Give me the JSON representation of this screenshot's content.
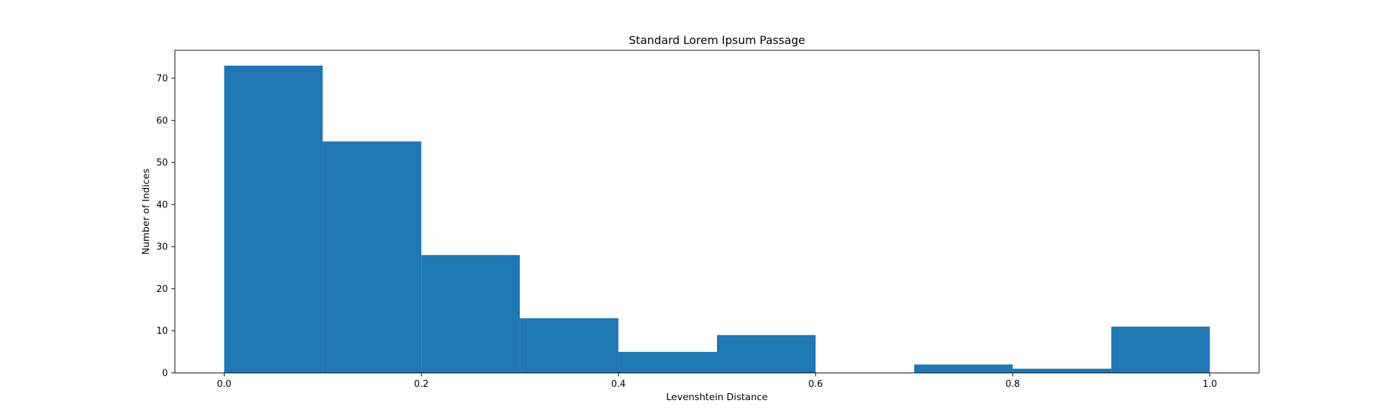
{
  "chart_data": {
    "type": "bar",
    "title": "Standard Lorem Ipsum Passage",
    "xlabel": "Levenshtein Distance",
    "ylabel": "Number of Indices",
    "bins": [
      {
        "start": 0.0,
        "end": 0.1,
        "count": 73
      },
      {
        "start": 0.1,
        "end": 0.2,
        "count": 55
      },
      {
        "start": 0.2,
        "end": 0.3,
        "count": 28
      },
      {
        "start": 0.3,
        "end": 0.4,
        "count": 13
      },
      {
        "start": 0.4,
        "end": 0.5,
        "count": 5
      },
      {
        "start": 0.5,
        "end": 0.6,
        "count": 9
      },
      {
        "start": 0.6,
        "end": 0.7,
        "count": 0
      },
      {
        "start": 0.7,
        "end": 0.8,
        "count": 2
      },
      {
        "start": 0.8,
        "end": 0.9,
        "count": 1
      },
      {
        "start": 0.9,
        "end": 1.0,
        "count": 11
      }
    ],
    "xlim": [
      -0.05,
      1.05
    ],
    "ylim": [
      0,
      76.65
    ],
    "xticks": [
      0.0,
      0.2,
      0.4,
      0.6,
      0.8,
      1.0
    ],
    "xtick_labels": [
      "0.0",
      "0.2",
      "0.4",
      "0.6",
      "0.8",
      "1.0"
    ],
    "yticks": [
      0,
      10,
      20,
      30,
      40,
      50,
      60,
      70
    ],
    "ytick_labels": [
      "0",
      "10",
      "20",
      "30",
      "40",
      "50",
      "60",
      "70"
    ],
    "bar_color": "#1f77b4",
    "grid": false,
    "legend": "none"
  }
}
